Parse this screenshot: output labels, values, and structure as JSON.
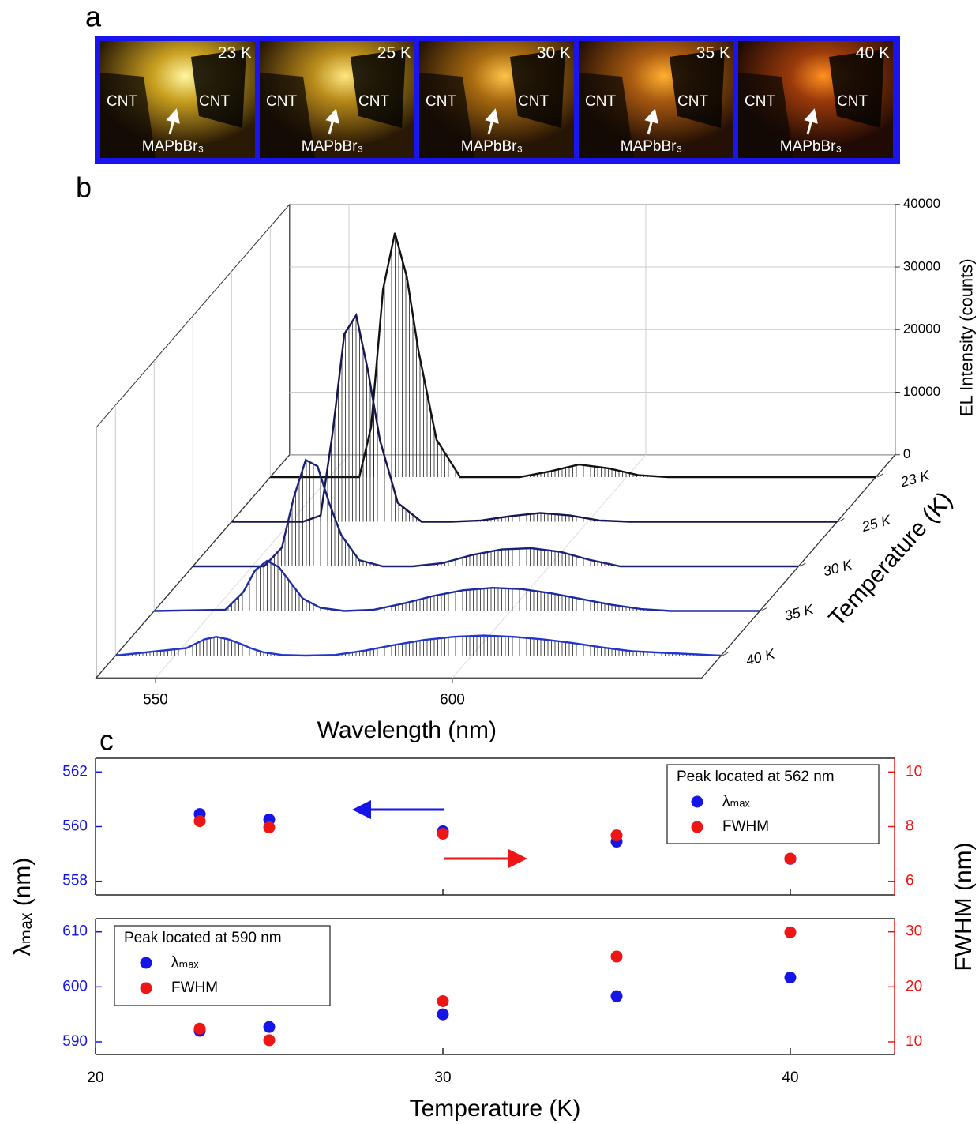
{
  "panel_labels": [
    "a",
    "b",
    "c"
  ],
  "images": [
    {
      "temperature": "23 K",
      "left": "CNT",
      "right": "CNT",
      "sample": "MAPbBr₃"
    },
    {
      "temperature": "25 K",
      "left": "CNT",
      "right": "CNT",
      "sample": "MAPbBr₃"
    },
    {
      "temperature": "30 K",
      "left": "CNT",
      "right": "CNT",
      "sample": "MAPbBr₃"
    },
    {
      "temperature": "35 K",
      "left": "CNT",
      "right": "CNT",
      "sample": "MAPbBr₃"
    },
    {
      "temperature": "40 K",
      "left": "CNT",
      "right": "CNT",
      "sample": "MAPbBr₃"
    }
  ],
  "chart_data": [
    {
      "type": "waterfall",
      "xlabel": "Wavelength (nm)",
      "ylabel": "EL Intensity (counts)",
      "zlabel": "Temperature (K)",
      "xlim": [
        540,
        642
      ],
      "xticks": [
        550,
        600
      ],
      "ylim": [
        0,
        40000
      ],
      "yticks": [
        0,
        10000,
        20000,
        30000,
        40000
      ],
      "grid": true,
      "x": [
        540,
        552,
        555,
        557,
        559,
        561,
        563,
        565,
        568,
        572,
        577,
        582,
        587,
        592,
        597,
        602,
        607,
        612,
        617,
        622,
        627,
        642
      ],
      "series": [
        {
          "name": "23 K",
          "color": "#111111",
          "values": [
            0,
            0,
            0,
            8000,
            30000,
            39000,
            32000,
            20000,
            6000,
            0,
            0,
            0,
            900,
            2000,
            1400,
            300,
            0,
            0,
            0,
            0,
            0,
            0
          ]
        },
        {
          "name": "25 K",
          "color": "#161650",
          "values": [
            0,
            0,
            1000,
            14000,
            30000,
            33000,
            24000,
            13000,
            3000,
            0,
            0,
            200,
            900,
            1400,
            1000,
            200,
            0,
            0,
            0,
            0,
            0,
            0
          ]
        },
        {
          "name": "30 K",
          "color": "#1a2275",
          "values": [
            0,
            0,
            3000,
            11000,
            17000,
            16000,
            10000,
            5000,
            1000,
            0,
            0,
            500,
            1800,
            2700,
            2900,
            2300,
            1000,
            0,
            0,
            0,
            0,
            0
          ]
        },
        {
          "name": "35 K",
          "color": "#1d2ba0",
          "values": [
            0,
            200,
            3000,
            6500,
            8000,
            7000,
            4500,
            2000,
            500,
            0,
            200,
            1200,
            2400,
            3300,
            3700,
            3500,
            2800,
            1900,
            1000,
            300,
            0,
            0
          ]
        },
        {
          "name": "40 K",
          "color": "#2235d0",
          "values": [
            0,
            1200,
            2600,
            3000,
            2600,
            1900,
            1100,
            500,
            100,
            0,
            100,
            800,
            1700,
            2500,
            3000,
            3200,
            3000,
            2600,
            2000,
            1300,
            700,
            0
          ]
        }
      ]
    },
    {
      "type": "scatter",
      "legend_title": "Peak located at 562 nm",
      "legend": "upper right",
      "x": [
        23,
        25,
        30,
        35,
        40
      ],
      "xlim": [
        20,
        43
      ],
      "xticks": [
        20,
        30,
        40
      ],
      "ylim": [
        557.5,
        562.5
      ],
      "yticks": [
        558,
        560,
        562
      ],
      "y2lim": [
        5.5,
        10.5
      ],
      "y2ticks": [
        6,
        8,
        10
      ],
      "series": [
        {
          "name": "λₘₐₓ",
          "color": "#1515e8",
          "values": [
            560.46,
            560.26,
            559.83,
            559.45,
            558.82
          ]
        },
        {
          "name": "FWHM",
          "color": "#ee1515",
          "axis": "y2",
          "values": [
            8.2,
            7.97,
            7.74,
            7.68,
            6.83
          ]
        }
      ]
    },
    {
      "type": "scatter",
      "legend_title": "Peak located at 590 nm",
      "legend": "upper left",
      "xlabel": "Temperature (K)",
      "ylabel": "λₘₐₓ (nm)",
      "y2label": "FWHM (nm)",
      "x": [
        23,
        25,
        30,
        35,
        40
      ],
      "xlim": [
        20,
        43
      ],
      "xticks": [
        20,
        30,
        40
      ],
      "ylim": [
        587.7,
        612.4
      ],
      "yticks": [
        590,
        600,
        610
      ],
      "y2lim": [
        7.7,
        32.4
      ],
      "y2ticks": [
        10,
        20,
        30
      ],
      "series": [
        {
          "name": "λₘₐₓ",
          "color": "#1515e8",
          "values": [
            592.0,
            592.7,
            595.0,
            598.3,
            601.7
          ]
        },
        {
          "name": "FWHM",
          "color": "#ee1515",
          "axis": "y2",
          "values": [
            12.4,
            10.3,
            17.4,
            25.5,
            29.9
          ]
        }
      ]
    }
  ]
}
